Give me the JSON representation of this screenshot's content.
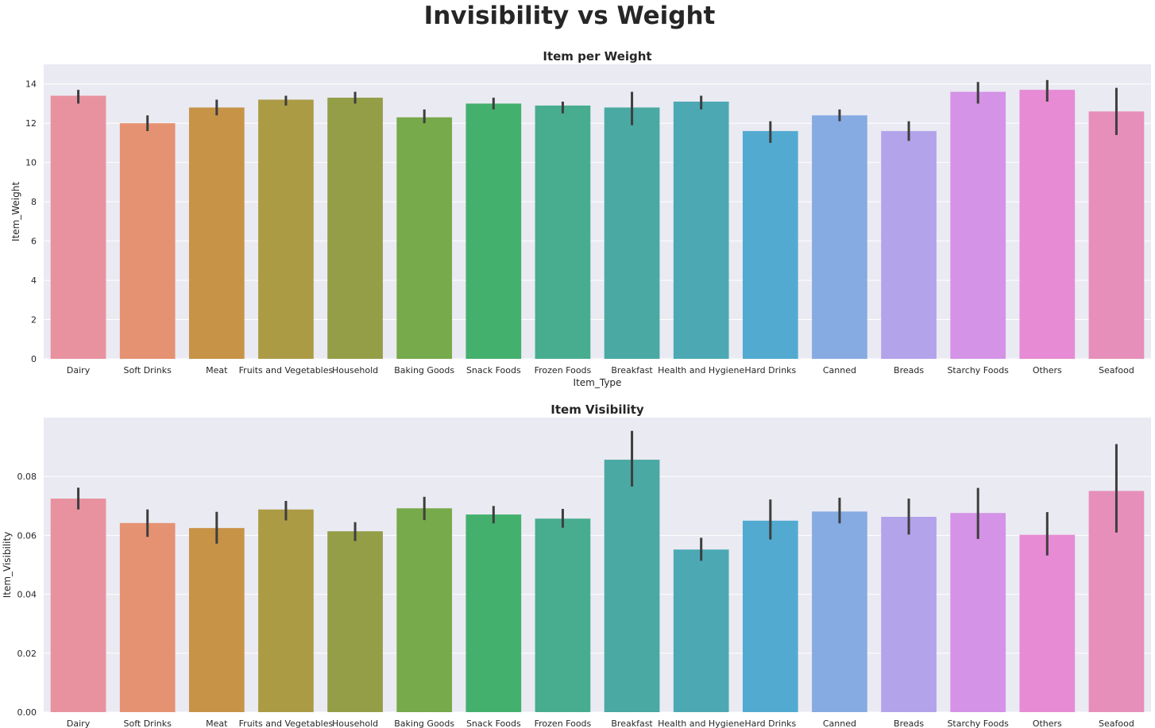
{
  "figure_title": "Invisibility vs Weight",
  "chart_data": [
    {
      "type": "bar",
      "title": "Item per Weight",
      "xlabel": "Item_Type",
      "ylabel": "Item_Weight",
      "ylim": [
        0,
        15
      ],
      "yticks": [
        0,
        2,
        4,
        6,
        8,
        10,
        12,
        14
      ],
      "ytick_labels": [
        "0",
        "2",
        "4",
        "6",
        "8",
        "10",
        "12",
        "14"
      ],
      "categories": [
        "Dairy",
        "Soft Drinks",
        "Meat",
        "Fruits and Vegetables",
        "Household",
        "Baking Goods",
        "Snack Foods",
        "Frozen Foods",
        "Breakfast",
        "Health and Hygiene",
        "Hard Drinks",
        "Canned",
        "Breads",
        "Starchy Foods",
        "Others",
        "Seafood"
      ],
      "values": [
        13.4,
        12.0,
        12.8,
        13.2,
        13.3,
        12.3,
        13.0,
        12.9,
        12.8,
        13.1,
        11.6,
        12.4,
        11.6,
        13.6,
        13.7,
        12.6
      ],
      "error_low": [
        13.0,
        11.6,
        12.4,
        12.9,
        13.0,
        12.0,
        12.7,
        12.5,
        11.9,
        12.7,
        11.0,
        12.1,
        11.1,
        13.0,
        13.1,
        11.4
      ],
      "error_high": [
        13.7,
        12.4,
        13.2,
        13.4,
        13.6,
        12.7,
        13.3,
        13.1,
        13.6,
        13.4,
        12.1,
        12.7,
        12.1,
        14.1,
        14.2,
        13.8
      ],
      "grid": true
    },
    {
      "type": "bar",
      "title": "Item Visibility",
      "xlabel": "",
      "ylabel": "Item_Visibility",
      "ylim": [
        0,
        0.1
      ],
      "yticks": [
        0,
        0.02,
        0.04,
        0.06,
        0.08
      ],
      "ytick_labels": [
        "0.00",
        "0.02",
        "0.04",
        "0.06",
        "0.08"
      ],
      "categories": [
        "Dairy",
        "Soft Drinks",
        "Meat",
        "Fruits and Vegetables",
        "Household",
        "Baking Goods",
        "Snack Foods",
        "Frozen Foods",
        "Breakfast",
        "Health and Hygiene",
        "Hard Drinks",
        "Canned",
        "Breads",
        "Starchy Foods",
        "Others",
        "Seafood"
      ],
      "values": [
        0.0725,
        0.0642,
        0.0625,
        0.0688,
        0.0614,
        0.0692,
        0.0671,
        0.0657,
        0.0857,
        0.0552,
        0.065,
        0.0681,
        0.0663,
        0.0676,
        0.0602,
        0.0751
      ],
      "error_low": [
        0.0688,
        0.0595,
        0.0572,
        0.0651,
        0.0581,
        0.0652,
        0.0641,
        0.0626,
        0.0766,
        0.0514,
        0.0586,
        0.0641,
        0.0603,
        0.0588,
        0.0532,
        0.061
      ],
      "error_high": [
        0.0762,
        0.0688,
        0.068,
        0.0717,
        0.0645,
        0.0731,
        0.07,
        0.069,
        0.0955,
        0.0592,
        0.0722,
        0.0728,
        0.0725,
        0.0761,
        0.0679,
        0.091
      ],
      "grid": true
    }
  ],
  "colors": {
    "bars": [
      "#e8929f",
      "#e59272",
      "#c79347",
      "#ab9b45",
      "#939e47",
      "#77aa4a",
      "#44b06d",
      "#48ad8f",
      "#4aa9a2",
      "#4ca9b4",
      "#52aad1",
      "#86abe3",
      "#b3a3ea",
      "#d493e6",
      "#e68bd4",
      "#e68fba"
    ],
    "axes_bg": "#eaeaf2",
    "grid": "#ffffff",
    "error_bar": "#3e3e3e",
    "text": "#262626"
  }
}
